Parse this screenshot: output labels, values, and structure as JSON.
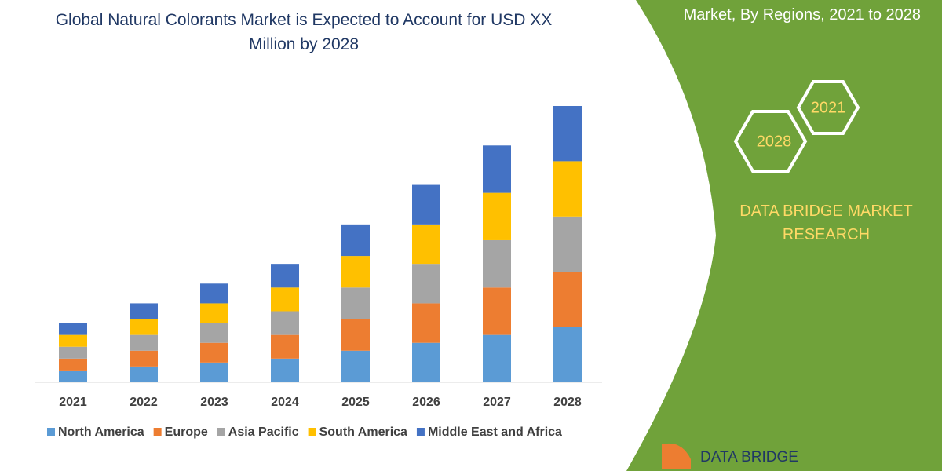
{
  "chart_data": {
    "type": "stacked-bar",
    "title": "Global Natural Colorants Market is Expected to Account for USD XX Million by 2028",
    "categories": [
      "2021",
      "2022",
      "2023",
      "2024",
      "2025",
      "2026",
      "2027",
      "2028"
    ],
    "series": [
      {
        "name": "North America",
        "color": "#5b9bd5",
        "values": [
          15,
          20,
          25,
          30,
          40,
          50,
          60,
          70
        ]
      },
      {
        "name": "Europe",
        "color": "#ed7d31",
        "values": [
          15,
          20,
          25,
          30,
          40,
          50,
          60,
          70
        ]
      },
      {
        "name": "Asia Pacific",
        "color": "#a5a5a5",
        "values": [
          15,
          20,
          25,
          30,
          40,
          50,
          60,
          70
        ]
      },
      {
        "name": "South America",
        "color": "#ffc000",
        "values": [
          15,
          20,
          25,
          30,
          40,
          50,
          60,
          70
        ]
      },
      {
        "name": "Middle East and Africa",
        "color": "#4472c4",
        "values": [
          15,
          20,
          25,
          30,
          40,
          50,
          60,
          70
        ]
      }
    ],
    "legend": "bottom"
  },
  "sidebar": {
    "title": "Market, By Regions, 2021 to 2028",
    "hexagons": [
      "2021",
      "2028"
    ],
    "brand": "DATA BRIDGE MARKET RESEARCH",
    "logo": "DATA BRIDGE"
  }
}
